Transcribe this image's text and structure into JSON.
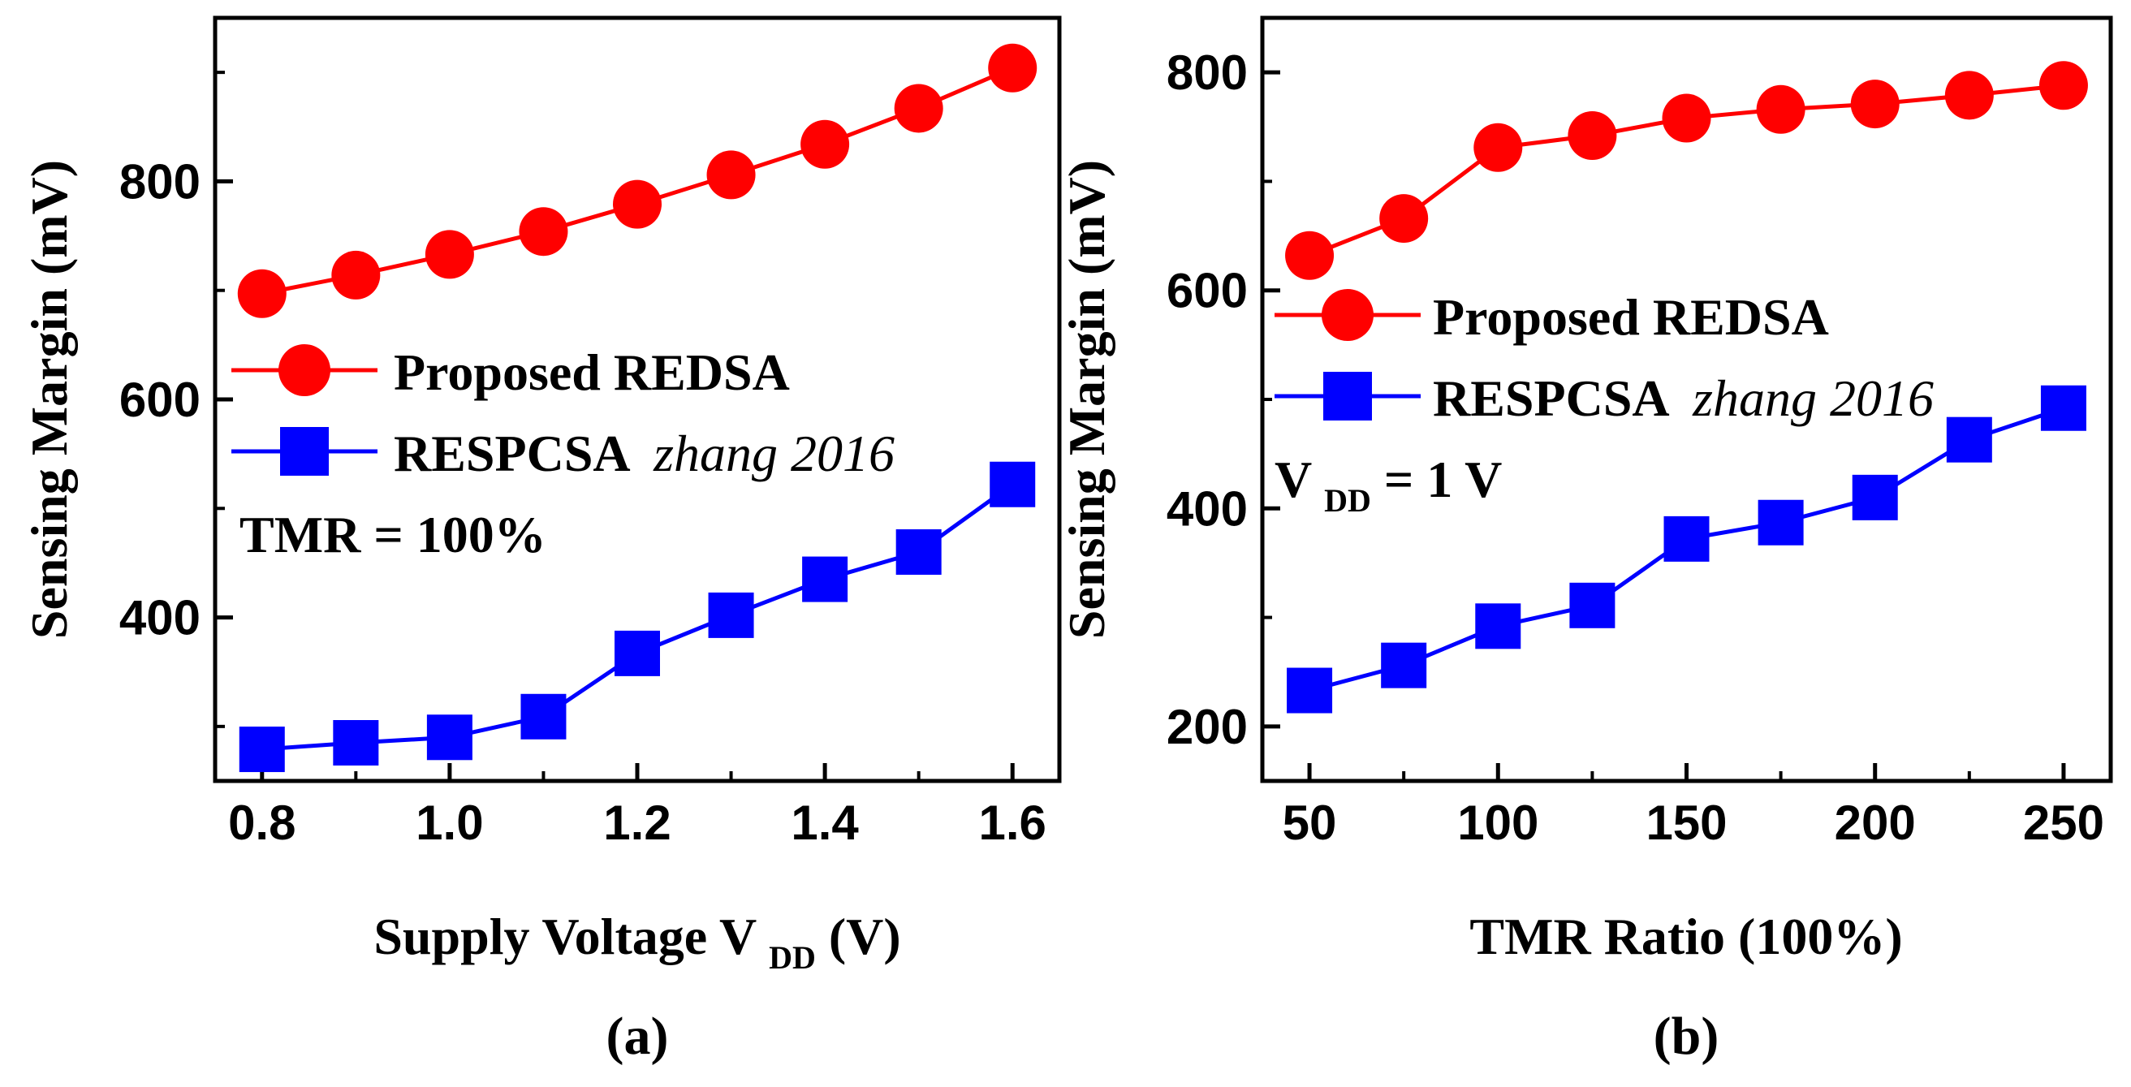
{
  "chart_data": [
    {
      "type": "line",
      "caption": "(a)",
      "xlabel": {
        "main": "Supply Voltage V",
        "sub": "DD",
        "unit": " (V)"
      },
      "ylabel": "Sensing Margin (mV)",
      "xlim": [
        0.75,
        1.65
      ],
      "ylim": [
        250,
        950
      ],
      "xticks": [
        0.8,
        1.0,
        1.2,
        1.4,
        1.6
      ],
      "xtick_labels": [
        "0.8",
        "1.0",
        "1.2",
        "1.4",
        "1.6"
      ],
      "xminor": [
        0.9,
        1.1,
        1.3,
        1.5
      ],
      "yticks": [
        400,
        600,
        800
      ],
      "ytick_labels": [
        "400",
        "600",
        "800"
      ],
      "yminor": [
        300,
        500,
        700,
        900
      ],
      "x": [
        0.8,
        0.9,
        1.0,
        1.1,
        1.2,
        1.3,
        1.4,
        1.5,
        1.6
      ],
      "series": [
        {
          "name": "Proposed REDSA",
          "name_suffix": "",
          "color": "#ff0000",
          "marker": "circle",
          "values": [
            697,
            714,
            733,
            754,
            779,
            806,
            834,
            867,
            904
          ]
        },
        {
          "name": "RESPCSA",
          "name_suffix": "zhang 2016",
          "color": "#0000ff",
          "marker": "square",
          "values": [
            279,
            285,
            290,
            309,
            367,
            402,
            435,
            460,
            522
          ]
        }
      ],
      "annotation": "TMR = 100%",
      "legend": "center-left"
    },
    {
      "type": "line",
      "caption": "(b)",
      "xlabel": {
        "main": "TMR Ratio (100%)",
        "sub": "",
        "unit": ""
      },
      "ylabel": "Sensing Margin (mV)",
      "xlim": [
        37.5,
        262.5
      ],
      "ylim": [
        150,
        850
      ],
      "xticks": [
        50,
        100,
        150,
        200,
        250
      ],
      "xtick_labels": [
        "50",
        "100",
        "150",
        "200",
        "250"
      ],
      "xminor": [
        75,
        125,
        175,
        225
      ],
      "yticks": [
        200,
        400,
        600,
        800
      ],
      "ytick_labels": [
        "200",
        "400",
        "600",
        "800"
      ],
      "yminor": [
        300,
        500,
        700
      ],
      "x": [
        50,
        75,
        100,
        125,
        150,
        175,
        200,
        225,
        250
      ],
      "series": [
        {
          "name": "Proposed REDSA",
          "name_suffix": "",
          "color": "#ff0000",
          "marker": "circle",
          "values": [
            632,
            666,
            731,
            742,
            758,
            766,
            771,
            779,
            788
          ]
        },
        {
          "name": "RESPCSA",
          "name_suffix": "zhang 2016",
          "color": "#0000ff",
          "marker": "square",
          "values": [
            233,
            256,
            292,
            311,
            372,
            387,
            410,
            463,
            492
          ]
        }
      ],
      "annotation": {
        "main": "V",
        "sub": "DD",
        "rest": " = 1 V"
      },
      "legend": "center-left"
    }
  ]
}
